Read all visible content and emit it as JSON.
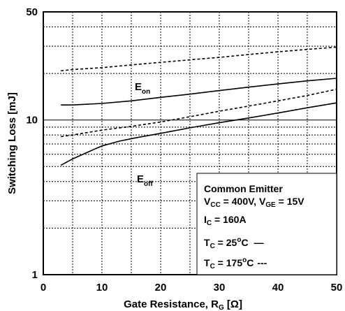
{
  "chart_data": {
    "type": "line",
    "xlabel": "Gate Resistance, R",
    "xlabel_sub": "G",
    "xlabel_unit": " [Ω]",
    "ylabel": "Switching Loss [mJ]",
    "xlim": [
      0,
      50
    ],
    "ylim": [
      1,
      50
    ],
    "yscale": "log",
    "grid": true,
    "x_ticks": [
      0,
      10,
      20,
      30,
      40,
      50
    ],
    "x_tick_labels": [
      "0",
      "10",
      "20",
      "30",
      "40",
      "50"
    ],
    "y_ticks": [
      1,
      10,
      50
    ],
    "y_tick_labels": [
      "1",
      "10",
      "50"
    ],
    "series": [
      {
        "name": "E_on 25°C",
        "style": "solid",
        "temperature": "25°C",
        "x": [
          3,
          5,
          10,
          15,
          20,
          25,
          30,
          35,
          40,
          45,
          50
        ],
        "y": [
          12.5,
          12.5,
          12.8,
          13.3,
          14.0,
          14.7,
          15.5,
          16.3,
          17.1,
          17.9,
          18.6
        ]
      },
      {
        "name": "E_on 175°C",
        "style": "dashed",
        "temperature": "175°C",
        "x": [
          3,
          5,
          10,
          15,
          20,
          25,
          30,
          35,
          40,
          45,
          50
        ],
        "y": [
          20.8,
          21.2,
          21.8,
          22.7,
          23.6,
          24.5,
          25.4,
          26.5,
          27.6,
          28.6,
          29.6
        ]
      },
      {
        "name": "E_off 25°C",
        "style": "solid",
        "temperature": "25°C",
        "x": [
          3,
          5,
          8,
          10,
          13,
          16,
          20,
          25,
          30,
          35,
          40,
          45,
          50
        ],
        "y": [
          5.1,
          5.6,
          6.3,
          6.8,
          7.3,
          7.7,
          8.2,
          8.9,
          9.6,
          10.3,
          11.1,
          12.0,
          12.9
        ]
      },
      {
        "name": "E_off 175°C",
        "style": "dashed",
        "temperature": "175°C",
        "x": [
          3,
          5,
          10,
          15,
          20,
          25,
          30,
          35,
          40,
          45,
          50
        ],
        "y": [
          7.8,
          8.0,
          8.6,
          9.1,
          9.7,
          10.5,
          11.4,
          12.3,
          13.3,
          14.4,
          15.8
        ]
      }
    ],
    "curve_labels": [
      {
        "base": "E",
        "sub": "on"
      },
      {
        "base": "E",
        "sub": "off"
      }
    ],
    "legend": {
      "position": "bottom-right",
      "lines": {
        "title": "Common Emitter",
        "vcc_v": "V",
        "vcc_sub": "CC",
        "vcc_rest": " = 400V, V",
        "vge_sub": "GE",
        "vge_rest": " = 15V",
        "ic_v": "I",
        "ic_sub": "C",
        "ic_rest": " = 160A",
        "tc1_v": "T",
        "tc1_sub": "C",
        "tc1_rest": " = 25",
        "tc1_sup": "o",
        "tc1_unit": "C",
        "tc1_style": "—",
        "tc2_v": "T",
        "tc2_sub": "C",
        "tc2_rest": " = 175",
        "tc2_sup": "o",
        "tc2_unit": "C",
        "tc2_style": "---"
      }
    }
  }
}
